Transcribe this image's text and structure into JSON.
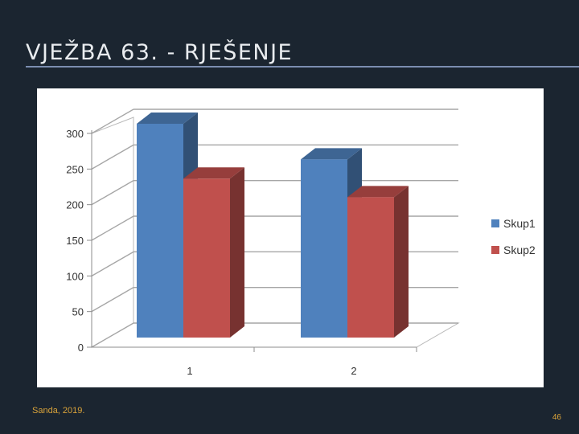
{
  "slide": {
    "title": "VJEŽBA 63. - RJEŠENJE",
    "author_footer": "Sanda, 2019.",
    "page_number": "46"
  },
  "chart_data": {
    "type": "bar",
    "style": "3d-clustered-column",
    "categories": [
      "1",
      "2"
    ],
    "series": [
      {
        "name": "Skup1",
        "values": [
          300,
          250
        ],
        "color": "#4f81bd"
      },
      {
        "name": "Skup2",
        "values": [
          223,
          197
        ],
        "color": "#c0504d"
      }
    ],
    "ylim": [
      0,
      300
    ],
    "yticks": [
      "0",
      "50",
      "100",
      "150",
      "200",
      "250",
      "300"
    ],
    "grid": true,
    "legend": "right"
  }
}
